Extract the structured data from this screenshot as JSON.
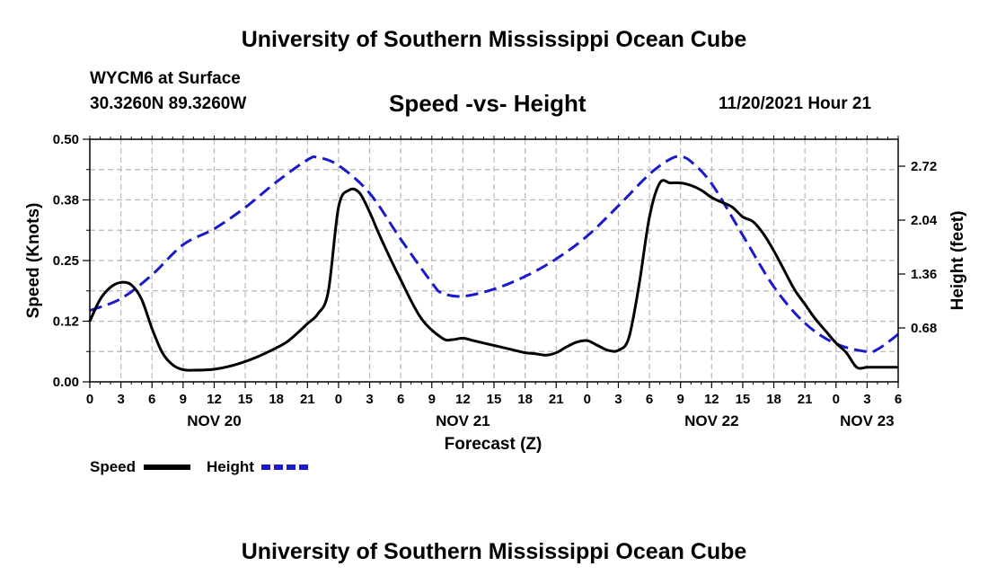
{
  "header": {
    "title": "University of Southern Mississippi Ocean Cube",
    "station": "WYCM6 at Surface",
    "coords": "30.3260N  89.3260W",
    "subtitle": "Speed -vs- Height",
    "datetime": "11/20/2021 Hour 21"
  },
  "footer": {
    "title": "University of Southern Mississippi Ocean Cube"
  },
  "chart_data": {
    "type": "line",
    "title": "Speed -vs- Height",
    "xlabel": "Forecast (Z)",
    "ylabel_left": "Speed (Knots)",
    "ylabel_right": "Height (feet)",
    "xlim": [
      0,
      78
    ],
    "ylim_left": [
      0,
      0.5
    ],
    "ylim_right": [
      0.0,
      3.06
    ],
    "left_ticks": [
      "0.00",
      "0.12",
      "0.25",
      "0.38",
      "0.50"
    ],
    "left_tick_values": [
      0,
      0.125,
      0.25,
      0.375,
      0.5
    ],
    "right_ticks": [
      "0.68",
      "1.36",
      "2.04",
      "2.72"
    ],
    "right_tick_values": [
      0.68,
      1.36,
      2.04,
      2.72
    ],
    "x_tick_labels": [
      "0",
      "3",
      "6",
      "9",
      "12",
      "15",
      "18",
      "21",
      "0",
      "3",
      "6",
      "9",
      "12",
      "15",
      "18",
      "21",
      "0",
      "3",
      "6",
      "9",
      "12",
      "15",
      "18",
      "21",
      "0",
      "3",
      "6"
    ],
    "day_labels": [
      {
        "label": "NOV 20",
        "at": 12
      },
      {
        "label": "NOV 21",
        "at": 36
      },
      {
        "label": "NOV 22",
        "at": 60
      },
      {
        "label": "NOV 23",
        "at": 75
      }
    ],
    "grid": true,
    "legend_position": "bottom-left",
    "series": [
      {
        "name": "Speed",
        "axis": "left",
        "color": "#000000",
        "dash": "solid",
        "x": [
          0,
          1,
          2,
          3,
          4,
          5,
          6,
          7,
          8,
          9,
          10,
          12,
          14,
          16,
          18,
          19,
          20,
          21,
          22,
          23,
          24,
          25,
          26,
          27,
          28,
          30,
          32,
          34,
          35,
          36,
          37,
          38,
          39,
          40,
          41,
          42,
          43,
          44,
          45,
          46,
          47,
          48,
          49,
          50,
          51,
          52,
          53,
          54,
          55,
          56,
          57,
          58,
          59,
          60,
          61,
          62,
          63,
          64,
          65,
          66,
          67,
          68,
          69,
          70,
          71,
          72,
          73,
          74,
          75,
          76,
          77,
          78
        ],
        "values": [
          0.125,
          0.17,
          0.195,
          0.205,
          0.2,
          0.17,
          0.11,
          0.06,
          0.035,
          0.025,
          0.024,
          0.026,
          0.035,
          0.05,
          0.07,
          0.082,
          0.1,
          0.12,
          0.14,
          0.185,
          0.36,
          0.395,
          0.39,
          0.35,
          0.3,
          0.21,
          0.13,
          0.09,
          0.087,
          0.09,
          0.085,
          0.08,
          0.075,
          0.07,
          0.065,
          0.06,
          0.058,
          0.055,
          0.06,
          0.072,
          0.082,
          0.085,
          0.075,
          0.065,
          0.065,
          0.09,
          0.2,
          0.34,
          0.41,
          0.41,
          0.41,
          0.405,
          0.395,
          0.38,
          0.37,
          0.36,
          0.34,
          0.33,
          0.305,
          0.27,
          0.23,
          0.19,
          0.16,
          0.13,
          0.105,
          0.08,
          0.06,
          0.03,
          0.03,
          0.03,
          0.03,
          0.03
        ]
      },
      {
        "name": "Height",
        "axis": "right",
        "color": "#1a1acc",
        "dash": "dashed",
        "x": [
          0,
          3,
          6,
          9,
          12,
          15,
          18,
          21,
          22,
          24,
          27,
          30,
          33,
          34,
          36,
          39,
          42,
          45,
          48,
          51,
          54,
          56,
          57,
          58,
          60,
          63,
          66,
          69,
          72,
          75,
          76,
          77,
          78
        ],
        "values": [
          0.9,
          1.05,
          1.35,
          1.73,
          1.93,
          2.2,
          2.52,
          2.8,
          2.83,
          2.73,
          2.38,
          1.8,
          1.25,
          1.12,
          1.08,
          1.17,
          1.33,
          1.55,
          1.84,
          2.22,
          2.62,
          2.81,
          2.84,
          2.78,
          2.5,
          1.85,
          1.2,
          0.74,
          0.48,
          0.38,
          0.41,
          0.5,
          0.6
        ]
      }
    ]
  }
}
